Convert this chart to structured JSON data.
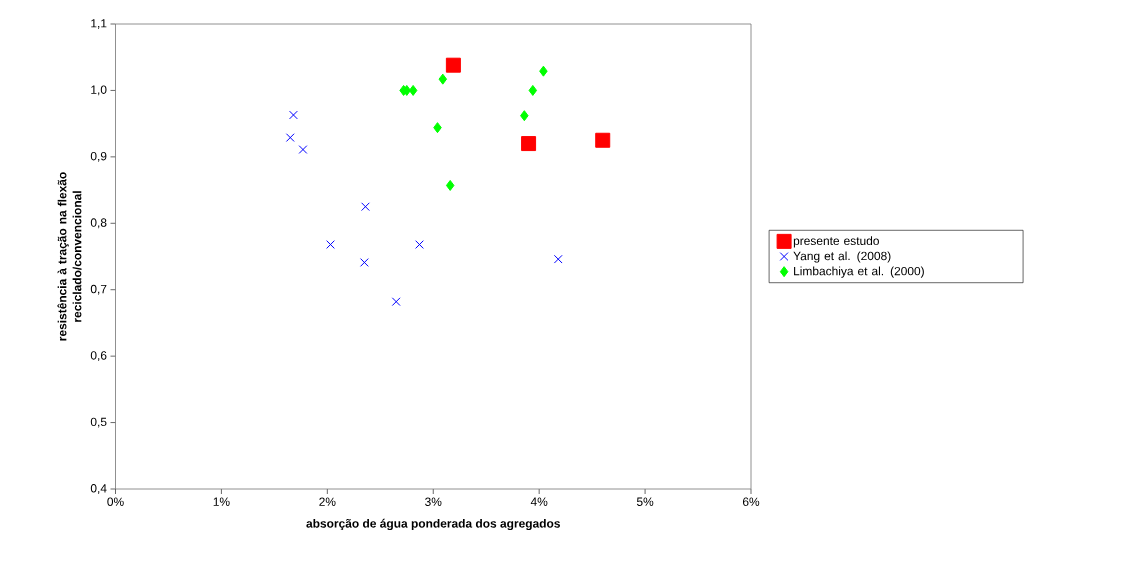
{
  "chart_data": {
    "type": "scatter",
    "xlabel": "absorção de água ponderada dos agregados",
    "ylabel": "resistência à tração na flexão reciclado/convencional",
    "xlim": [
      0,
      6
    ],
    "ylim": [
      0.4,
      1.1
    ],
    "xticks": [
      {
        "value": 0,
        "label": "0%"
      },
      {
        "value": 1,
        "label": "1%"
      },
      {
        "value": 2,
        "label": "2%"
      },
      {
        "value": 3,
        "label": "3%"
      },
      {
        "value": 4,
        "label": "4%"
      },
      {
        "value": 5,
        "label": "5%"
      },
      {
        "value": 6,
        "label": "6%"
      }
    ],
    "yticks": [
      {
        "value": 0.4,
        "label": "0,4"
      },
      {
        "value": 0.5,
        "label": "0,5"
      },
      {
        "value": 0.6,
        "label": "0,6"
      },
      {
        "value": 0.7,
        "label": "0,7"
      },
      {
        "value": 0.8,
        "label": "0,8"
      },
      {
        "value": 0.9,
        "label": "0,9"
      },
      {
        "value": 1.0,
        "label": "1,0"
      },
      {
        "value": 1.1,
        "label": "1,1"
      }
    ],
    "grid": false,
    "legend": "right",
    "series": [
      {
        "name": "presente estudo",
        "color": "#ff0000",
        "marker": "square",
        "x": [
          3.19,
          3.9,
          4.6
        ],
        "values": [
          1.038,
          0.92,
          0.925
        ]
      },
      {
        "name": "Yang et al. (2008)",
        "color": "#0000ff",
        "marker": "cross",
        "x": [
          1.68,
          1.65,
          1.77,
          2.36,
          2.03,
          2.87,
          2.35,
          2.65,
          4.18
        ],
        "values": [
          0.963,
          0.929,
          0.911,
          0.825,
          0.768,
          0.768,
          0.741,
          0.682,
          0.746
        ]
      },
      {
        "name": "Limbachiya et al. (2000)",
        "color": "#00ff00",
        "marker": "diamond",
        "x": [
          2.72,
          2.75,
          2.81,
          3.09,
          4.04,
          3.94,
          3.86,
          3.04,
          3.16
        ],
        "values": [
          1.0,
          1.0,
          1.0,
          1.017,
          1.029,
          1.0,
          0.962,
          0.944,
          0.857
        ]
      }
    ]
  }
}
